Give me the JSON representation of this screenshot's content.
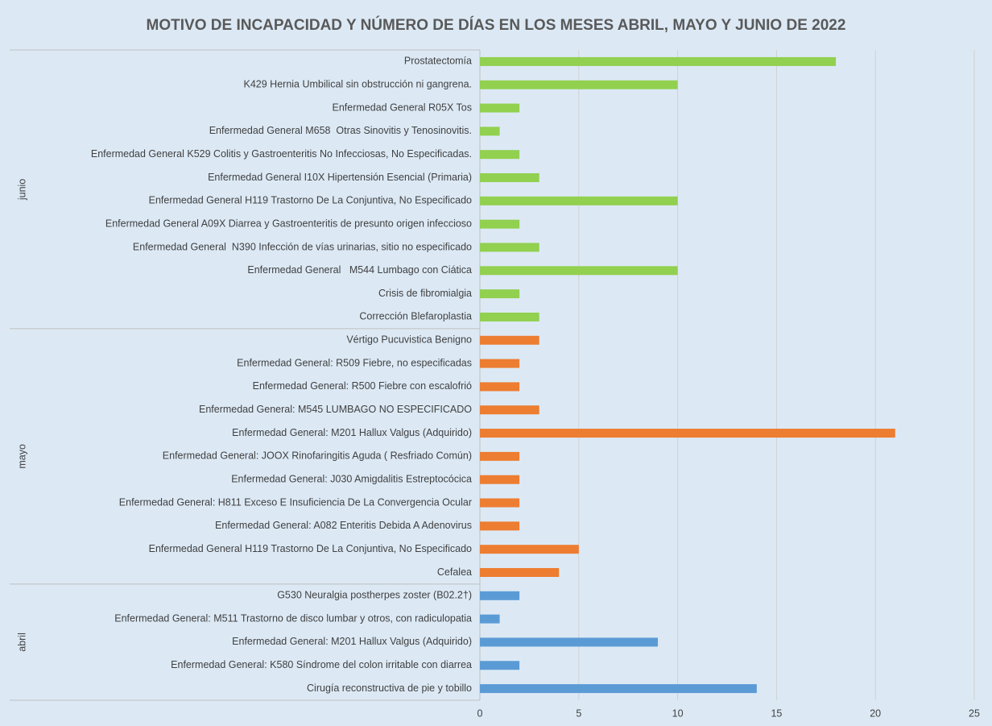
{
  "chart_data": {
    "type": "bar",
    "orientation": "horizontal",
    "title": "MOTIVO DE INCAPACIDAD Y NÚMERO DE DÍAS EN LOS MESES ABRIL, MAYO Y JUNIO DE 2022",
    "xlim": [
      0,
      25
    ],
    "xticks": [
      0,
      5,
      10,
      15,
      20,
      25
    ],
    "grid": true,
    "groups": [
      {
        "name": "junio",
        "color": "#92d050",
        "categories": [
          "Prostatectomía",
          "K429 Hernia Umbilical sin obstrucción ni gangrena.",
          "Enfermedad General R05X Tos",
          "Enfermedad General M658  Otras Sinovitis y Tenosinovitis.",
          "Enfermedad General K529 Colitis y Gastroenteritis No Infecciosas, No Especificadas.",
          "Enfermedad General I10X Hipertensión Esencial (Primaria)",
          "Enfermedad General H119 Trastorno De La Conjuntiva, No Especificado",
          "Enfermedad General A09X Diarrea y Gastroenteritis de presunto origen infeccioso",
          "Enfermedad General  N390 Infección de vías urinarias, sitio no especificado",
          "Enfermedad General   M544 Lumbago con Ciática",
          "Crisis de fibromialgia",
          "Corrección Blefaroplastia"
        ],
        "values": [
          18,
          10,
          2,
          1,
          2,
          3,
          10,
          2,
          3,
          10,
          2,
          3
        ]
      },
      {
        "name": "mayo",
        "color": "#ed7d31",
        "categories": [
          "Vértigo Pucuvistica Benigno",
          "Enfermedad General: R509 Fiebre, no especificadas",
          "Enfermedad General: R500 Fiebre con escalofrió",
          "Enfermedad General: M545 LUMBAGO NO ESPECIFICADO",
          "Enfermedad General: M201 Hallux Valgus (Adquirido)",
          "Enfermedad General: JOOX Rinofaringitis Aguda ( Resfriado Común)",
          "Enfermedad General: J030 Amigdalitis Estreptocócica",
          "Enfermedad General: H811 Exceso E Insuficiencia De La Convergencia Ocular",
          "Enfermedad General: A082 Enteritis Debida A Adenovirus",
          "Enfermedad General H119 Trastorno De La Conjuntiva, No Especificado",
          "Cefalea"
        ],
        "values": [
          3,
          2,
          2,
          3,
          21,
          2,
          2,
          2,
          2,
          5,
          4
        ]
      },
      {
        "name": "abril",
        "color": "#5b9bd5",
        "categories": [
          "G530 Neuralgia postherpes zoster (B02.2†)",
          "Enfermedad General: M511 Trastorno de disco lumbar y otros, con radiculopatia",
          "Enfermedad General: M201 Hallux Valgus (Adquirido)",
          "Enfermedad General: K580 Síndrome del colon irritable con diarrea",
          "Cirugía reconstructiva de pie y tobillo"
        ],
        "values": [
          2,
          1,
          9,
          2,
          14
        ]
      }
    ]
  }
}
